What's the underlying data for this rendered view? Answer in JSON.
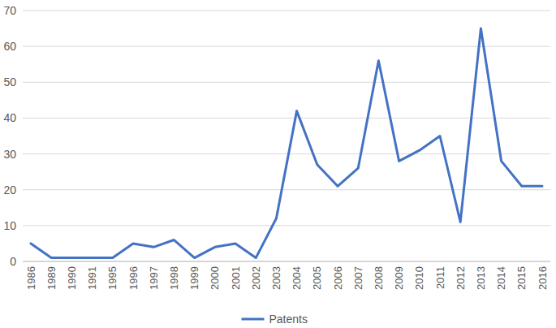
{
  "chart_data": {
    "type": "line",
    "categories": [
      "1986",
      "1989",
      "1990",
      "1991",
      "1995",
      "1996",
      "1997",
      "1998",
      "1999",
      "2000",
      "2001",
      "2002",
      "2003",
      "2004",
      "2005",
      "2006",
      "2007",
      "2008",
      "2009",
      "2010",
      "2011",
      "2012",
      "2013",
      "2014",
      "2015",
      "2016"
    ],
    "series": [
      {
        "name": "Patents",
        "color": "#4472c4",
        "values": [
          5,
          1,
          1,
          1,
          1,
          5,
          4,
          6,
          1,
          4,
          5,
          1,
          12,
          42,
          27,
          21,
          26,
          56,
          28,
          31,
          35,
          11,
          65,
          28,
          21,
          21
        ]
      }
    ],
    "ylim": [
      0,
      70
    ],
    "yticks": [
      0,
      10,
      20,
      30,
      40,
      50,
      60,
      70
    ],
    "grid": true,
    "legend": "bottom"
  }
}
